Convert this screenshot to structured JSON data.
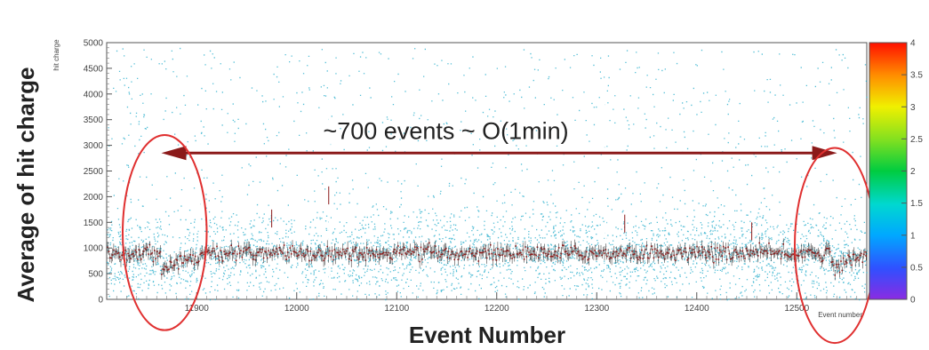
{
  "chart_data": {
    "type": "heatmap",
    "outer_ylabel": "Average of hit charge",
    "outer_xlabel": "Event Number",
    "inner_ylabel": "hit charge",
    "inner_xlabel": "Event number",
    "xlim": [
      11810,
      12570
    ],
    "ylim": [
      0,
      5000
    ],
    "x_ticks": [
      "11900",
      "12000",
      "12100",
      "12200",
      "12300",
      "12400",
      "12500"
    ],
    "y_ticks": [
      "0",
      "500",
      "1000",
      "1500",
      "2000",
      "2500",
      "3000",
      "3500",
      "4000",
      "4500",
      "5000"
    ],
    "colorbar": {
      "range": [
        0,
        4
      ],
      "ticks": [
        "0",
        "0.5",
        "1",
        "1.5",
        "2",
        "2.5",
        "3",
        "3.5",
        "4"
      ]
    },
    "mean_level": 900,
    "dips": [
      {
        "x": 11868,
        "min": 650
      },
      {
        "x": 12538,
        "min": 650
      }
    ],
    "annotation": {
      "text": "~700 events ~ O(1min)",
      "x_start": 11870,
      "x_end": 12535,
      "y": 2850
    },
    "highlight_ellipses": [
      {
        "cx": 11868,
        "cy": 1300,
        "rx": 42,
        "ry": 1900
      },
      {
        "cx": 12538,
        "cy": 1050,
        "rx": 40,
        "ry": 1900
      }
    ],
    "grid": false,
    "colors": {
      "scatter": "#1aa8c8",
      "profile": "#8b1a1a",
      "arrow": "#8b1a1a",
      "ellipse": "#e03030"
    }
  }
}
